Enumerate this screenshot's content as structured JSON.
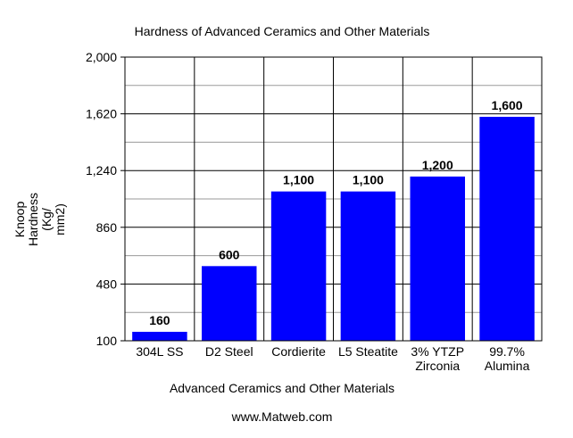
{
  "chart_data": {
    "type": "bar",
    "title": "Hardness of Advanced Ceramics and Other Materials",
    "xlabel": "Advanced Ceramics and Other Materials",
    "ylabel_lines": [
      "Knoop",
      "Hardness",
      "(Kg/",
      "mm2)"
    ],
    "categories": [
      [
        "304L SS"
      ],
      [
        "D2 Steel"
      ],
      [
        "Cordierite"
      ],
      [
        "L5 Steatite"
      ],
      [
        "3% YTZP",
        "Zirconia"
      ],
      [
        "99.7%",
        "Alumina"
      ]
    ],
    "values": [
      160,
      600,
      1100,
      1100,
      1200,
      1600
    ],
    "value_labels": [
      "160",
      "600",
      "1,100",
      "1,100",
      "1,200",
      "1,600"
    ],
    "ylim": [
      100,
      2000
    ],
    "yticks": [
      100,
      480,
      860,
      1240,
      1620,
      2000
    ],
    "ytick_labels": [
      "100",
      "480",
      "860",
      "1,240",
      "1,620",
      "2,000"
    ],
    "minor_gridlines": [
      290,
      670,
      1050,
      1430,
      1810
    ],
    "grid": true,
    "bar_color": "#0000ff",
    "legend": "none"
  },
  "footer": {
    "source": "www.Matweb.com"
  }
}
